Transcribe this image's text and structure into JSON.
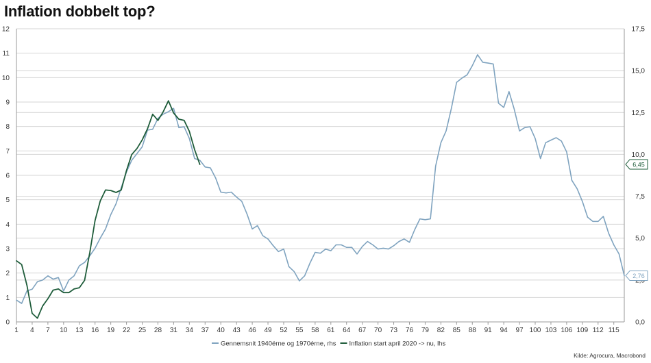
{
  "title": "Inflation dobbelt top?",
  "source": "Kilde: Agrocura, Macrobond",
  "colors": {
    "rhs_series": "#7FA3BF",
    "lhs_series": "#1E5C3A",
    "grid": "#d4d4d4",
    "axis": "#999999"
  },
  "chart_data": {
    "type": "line",
    "title": "Inflation dobbelt top?",
    "grid": true,
    "legend_placement": "bottom-center",
    "x_range": [
      1,
      117
    ],
    "x_ticks": [
      1,
      4,
      7,
      10,
      13,
      16,
      19,
      22,
      25,
      28,
      31,
      34,
      37,
      40,
      43,
      46,
      49,
      52,
      55,
      58,
      61,
      64,
      67,
      70,
      73,
      76,
      79,
      82,
      85,
      88,
      91,
      94,
      97,
      100,
      103,
      106,
      109,
      112,
      115
    ],
    "y_left": {
      "range": [
        0,
        12
      ],
      "ticks": [
        "0",
        "1",
        "2",
        "3",
        "4",
        "5",
        "6",
        "7",
        "8",
        "9",
        "10",
        "11",
        "12"
      ]
    },
    "y_right": {
      "range": [
        0,
        17.5
      ],
      "ticks": [
        "0,0",
        "2,5",
        "5,0",
        "7,5",
        "10,0",
        "12,5",
        "15,0",
        "17,5"
      ]
    },
    "series": [
      {
        "name": "Gennemsnit 1940érne og 1970érne, rhs",
        "axis": "right",
        "end_label": "2,76",
        "values": [
          1.3,
          1.1,
          1.85,
          1.95,
          2.4,
          2.5,
          2.75,
          2.55,
          2.65,
          1.85,
          2.5,
          2.75,
          3.35,
          3.55,
          3.95,
          4.4,
          5.0,
          5.55,
          6.4,
          7.05,
          8.0,
          8.95,
          9.65,
          10.05,
          10.45,
          11.45,
          11.5,
          12.15,
          12.4,
          12.55,
          12.75,
          11.6,
          11.65,
          10.95,
          9.75,
          9.65,
          9.25,
          9.2,
          8.6,
          7.75,
          7.7,
          7.75,
          7.45,
          7.2,
          6.45,
          5.55,
          5.75,
          5.15,
          4.95,
          4.55,
          4.2,
          4.35,
          3.3,
          3.0,
          2.45,
          2.75,
          3.5,
          4.15,
          4.1,
          4.35,
          4.25,
          4.6,
          4.6,
          4.45,
          4.45,
          4.05,
          4.5,
          4.8,
          4.6,
          4.35,
          4.4,
          4.35,
          4.55,
          4.8,
          4.95,
          4.75,
          5.5,
          6.15,
          6.1,
          6.15,
          9.3,
          10.7,
          11.4,
          12.75,
          14.3,
          14.55,
          14.75,
          15.3,
          15.95,
          15.5,
          15.45,
          15.4,
          13.05,
          12.8,
          13.75,
          12.7,
          11.4,
          11.6,
          11.65,
          10.95,
          9.75,
          10.7,
          10.85,
          11.0,
          10.8,
          10.15,
          8.45,
          7.95,
          7.2,
          6.25,
          6.0,
          6.0,
          6.3,
          5.3,
          4.6,
          4.05,
          2.76
        ]
      },
      {
        "name": "Inflation start april 2020 -> nu, lhs",
        "axis": "left",
        "end_label": "6,45",
        "values": [
          2.5,
          2.35,
          1.5,
          0.35,
          0.15,
          0.65,
          0.95,
          1.3,
          1.35,
          1.2,
          1.2,
          1.35,
          1.4,
          1.7,
          2.85,
          4.15,
          4.95,
          5.4,
          5.38,
          5.3,
          5.4,
          6.2,
          6.85,
          7.1,
          7.45,
          7.9,
          8.5,
          8.25,
          8.6,
          9.05,
          8.55,
          8.3,
          8.25,
          7.8,
          7.05,
          6.45
        ]
      }
    ]
  }
}
